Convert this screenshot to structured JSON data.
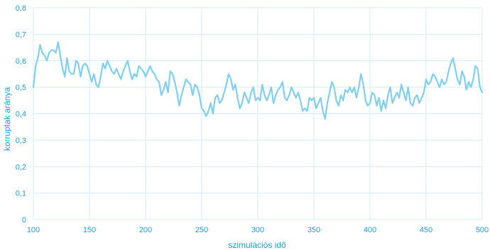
{
  "chart_data": {
    "type": "line",
    "title": "",
    "xlabel": "szimulációs idő",
    "ylabel": "korruptak aránya",
    "xlim": [
      100,
      500
    ],
    "ylim": [
      0,
      0.8
    ],
    "grid": true,
    "colors": {
      "line": "#7fd0f0",
      "grid": "#d0ecf8",
      "text": "#1e9fd6"
    },
    "x_ticks": [
      {
        "value": 100,
        "label": "100"
      },
      {
        "value": 150,
        "label": "150"
      },
      {
        "value": 200,
        "label": "200"
      },
      {
        "value": 250,
        "label": "250"
      },
      {
        "value": 300,
        "label": "300"
      },
      {
        "value": 350,
        "label": "350"
      },
      {
        "value": 400,
        "label": "400"
      },
      {
        "value": 450,
        "label": "450"
      },
      {
        "value": 500,
        "label": "500"
      }
    ],
    "y_ticks": [
      {
        "value": 0,
        "label": "0"
      },
      {
        "value": 0.1,
        "label": "0,1"
      },
      {
        "value": 0.2,
        "label": "0,2"
      },
      {
        "value": 0.3,
        "label": "0,3"
      },
      {
        "value": 0.4,
        "label": "0,4"
      },
      {
        "value": 0.5,
        "label": "0,5"
      },
      {
        "value": 0.6,
        "label": "0,6"
      },
      {
        "value": 0.7,
        "label": "0,7"
      },
      {
        "value": 0.8,
        "label": "0,8"
      }
    ],
    "series": [
      {
        "points": [
          [
            100,
            0.5
          ],
          [
            102,
            0.58
          ],
          [
            104,
            0.61
          ],
          [
            106,
            0.66
          ],
          [
            108,
            0.63
          ],
          [
            110,
            0.62
          ],
          [
            112,
            0.6
          ],
          [
            114,
            0.63
          ],
          [
            116,
            0.64
          ],
          [
            118,
            0.64
          ],
          [
            120,
            0.63
          ],
          [
            122,
            0.67
          ],
          [
            124,
            0.62
          ],
          [
            126,
            0.57
          ],
          [
            128,
            0.54
          ],
          [
            130,
            0.61
          ],
          [
            132,
            0.56
          ],
          [
            134,
            0.55
          ],
          [
            136,
            0.55
          ],
          [
            138,
            0.6
          ],
          [
            140,
            0.59
          ],
          [
            142,
            0.54
          ],
          [
            144,
            0.58
          ],
          [
            146,
            0.59
          ],
          [
            148,
            0.58
          ],
          [
            150,
            0.55
          ],
          [
            152,
            0.52
          ],
          [
            154,
            0.55
          ],
          [
            156,
            0.51
          ],
          [
            158,
            0.5
          ],
          [
            160,
            0.54
          ],
          [
            162,
            0.59
          ],
          [
            164,
            0.57
          ],
          [
            166,
            0.6
          ],
          [
            168,
            0.58
          ],
          [
            170,
            0.56
          ],
          [
            172,
            0.55
          ],
          [
            174,
            0.57
          ],
          [
            176,
            0.55
          ],
          [
            178,
            0.53
          ],
          [
            180,
            0.56
          ],
          [
            182,
            0.58
          ],
          [
            184,
            0.6
          ],
          [
            186,
            0.56
          ],
          [
            188,
            0.53
          ],
          [
            190,
            0.55
          ],
          [
            192,
            0.54
          ],
          [
            194,
            0.58
          ],
          [
            196,
            0.57
          ],
          [
            198,
            0.56
          ],
          [
            200,
            0.54
          ],
          [
            202,
            0.56
          ],
          [
            204,
            0.58
          ],
          [
            206,
            0.56
          ],
          [
            208,
            0.55
          ],
          [
            210,
            0.53
          ],
          [
            212,
            0.52
          ],
          [
            214,
            0.47
          ],
          [
            216,
            0.49
          ],
          [
            218,
            0.52
          ],
          [
            220,
            0.48
          ],
          [
            222,
            0.56
          ],
          [
            224,
            0.55
          ],
          [
            226,
            0.52
          ],
          [
            228,
            0.48
          ],
          [
            230,
            0.43
          ],
          [
            232,
            0.47
          ],
          [
            234,
            0.5
          ],
          [
            236,
            0.53
          ],
          [
            238,
            0.52
          ],
          [
            240,
            0.51
          ],
          [
            242,
            0.47
          ],
          [
            244,
            0.51
          ],
          [
            246,
            0.5
          ],
          [
            248,
            0.47
          ],
          [
            250,
            0.42
          ],
          [
            252,
            0.41
          ],
          [
            254,
            0.39
          ],
          [
            256,
            0.41
          ],
          [
            258,
            0.44
          ],
          [
            260,
            0.4
          ],
          [
            262,
            0.46
          ],
          [
            264,
            0.47
          ],
          [
            266,
            0.44
          ],
          [
            268,
            0.45
          ],
          [
            270,
            0.48
          ],
          [
            272,
            0.51
          ],
          [
            274,
            0.55
          ],
          [
            276,
            0.53
          ],
          [
            278,
            0.49
          ],
          [
            280,
            0.51
          ],
          [
            282,
            0.46
          ],
          [
            284,
            0.42
          ],
          [
            286,
            0.44
          ],
          [
            288,
            0.48
          ],
          [
            290,
            0.46
          ],
          [
            292,
            0.44
          ],
          [
            294,
            0.48
          ],
          [
            296,
            0.5
          ],
          [
            298,
            0.45
          ],
          [
            300,
            0.46
          ],
          [
            302,
            0.45
          ],
          [
            304,
            0.51
          ],
          [
            306,
            0.47
          ],
          [
            308,
            0.45
          ],
          [
            310,
            0.47
          ],
          [
            312,
            0.5
          ],
          [
            314,
            0.44
          ],
          [
            316,
            0.47
          ],
          [
            318,
            0.49
          ],
          [
            320,
            0.5
          ],
          [
            322,
            0.52
          ],
          [
            324,
            0.46
          ],
          [
            326,
            0.45
          ],
          [
            328,
            0.47
          ],
          [
            330,
            0.5
          ],
          [
            332,
            0.48
          ],
          [
            334,
            0.46
          ],
          [
            336,
            0.48
          ],
          [
            338,
            0.45
          ],
          [
            340,
            0.41
          ],
          [
            342,
            0.42
          ],
          [
            344,
            0.41
          ],
          [
            346,
            0.46
          ],
          [
            348,
            0.45
          ],
          [
            350,
            0.46
          ],
          [
            352,
            0.42
          ],
          [
            354,
            0.44
          ],
          [
            356,
            0.46
          ],
          [
            358,
            0.41
          ],
          [
            360,
            0.38
          ],
          [
            362,
            0.44
          ],
          [
            364,
            0.48
          ],
          [
            366,
            0.52
          ],
          [
            368,
            0.5
          ],
          [
            370,
            0.45
          ],
          [
            372,
            0.43
          ],
          [
            374,
            0.47
          ],
          [
            376,
            0.45
          ],
          [
            378,
            0.49
          ],
          [
            380,
            0.48
          ],
          [
            382,
            0.5
          ],
          [
            384,
            0.48
          ],
          [
            386,
            0.5
          ],
          [
            388,
            0.46
          ],
          [
            390,
            0.5
          ],
          [
            392,
            0.55
          ],
          [
            394,
            0.51
          ],
          [
            396,
            0.45
          ],
          [
            398,
            0.43
          ],
          [
            400,
            0.44
          ],
          [
            402,
            0.48
          ],
          [
            404,
            0.47
          ],
          [
            406,
            0.43
          ],
          [
            408,
            0.46
          ],
          [
            410,
            0.41
          ],
          [
            412,
            0.45
          ],
          [
            414,
            0.42
          ],
          [
            416,
            0.47
          ],
          [
            418,
            0.5
          ],
          [
            420,
            0.44
          ],
          [
            422,
            0.46
          ],
          [
            424,
            0.48
          ],
          [
            426,
            0.46
          ],
          [
            428,
            0.51
          ],
          [
            430,
            0.48
          ],
          [
            432,
            0.45
          ],
          [
            434,
            0.5
          ],
          [
            436,
            0.44
          ],
          [
            438,
            0.43
          ],
          [
            440,
            0.46
          ],
          [
            442,
            0.47
          ],
          [
            444,
            0.44
          ],
          [
            446,
            0.46
          ],
          [
            448,
            0.48
          ],
          [
            450,
            0.53
          ],
          [
            452,
            0.51
          ],
          [
            454,
            0.52
          ],
          [
            456,
            0.55
          ],
          [
            458,
            0.54
          ],
          [
            460,
            0.52
          ],
          [
            462,
            0.5
          ],
          [
            464,
            0.53
          ],
          [
            466,
            0.51
          ],
          [
            468,
            0.52
          ],
          [
            470,
            0.56
          ],
          [
            472,
            0.59
          ],
          [
            474,
            0.61
          ],
          [
            476,
            0.57
          ],
          [
            478,
            0.53
          ],
          [
            480,
            0.51
          ],
          [
            482,
            0.56
          ],
          [
            484,
            0.54
          ],
          [
            486,
            0.49
          ],
          [
            488,
            0.52
          ],
          [
            490,
            0.5
          ],
          [
            492,
            0.53
          ],
          [
            494,
            0.58
          ],
          [
            496,
            0.57
          ],
          [
            498,
            0.5
          ],
          [
            500,
            0.48
          ]
        ]
      }
    ]
  }
}
